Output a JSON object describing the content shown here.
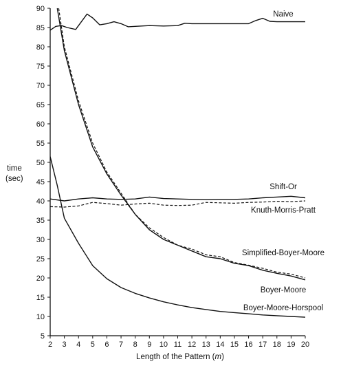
{
  "chart_data": {
    "type": "line",
    "title": "",
    "xlabel": "Length of the Pattern (m)",
    "xlabel_parts": {
      "before": "Length of the Pattern (",
      "italic": "m",
      "after": ")"
    },
    "ylabel_line1": "time",
    "ylabel_line2": "(sec)",
    "xlim": [
      2,
      20
    ],
    "ylim": [
      5,
      90
    ],
    "x_ticks": [
      "2",
      "3",
      "4",
      "5",
      "6",
      "7",
      "8",
      "9",
      "10",
      "11",
      "12",
      "13",
      "14",
      "15",
      "16",
      "17",
      "18",
      "19",
      "20"
    ],
    "y_ticks": [
      "5",
      "10",
      "15",
      "20",
      "25",
      "30",
      "35",
      "40",
      "45",
      "50",
      "55",
      "60",
      "65",
      "70",
      "75",
      "80",
      "85",
      "90"
    ],
    "grid": false,
    "legend": "none",
    "series": [
      {
        "name": "Naive",
        "style": "solid",
        "x": [
          2.0,
          2.4,
          2.8,
          3.2,
          3.8,
          4.3,
          4.6,
          5.0,
          5.5,
          6.0,
          6.5,
          7.0,
          7.5,
          8.0,
          9.0,
          10.0,
          11.0,
          11.5,
          12.0,
          13.0,
          14.0,
          15.0,
          16.0,
          16.5,
          17.0,
          17.5,
          18.0,
          19.0,
          20.0
        ],
        "y": [
          84.3,
          85.3,
          85.5,
          85.0,
          84.5,
          87.0,
          88.5,
          87.5,
          85.7,
          86.0,
          86.5,
          86.0,
          85.2,
          85.3,
          85.5,
          85.4,
          85.5,
          86.1,
          86.0,
          86.0,
          86.0,
          86.0,
          86.0,
          86.8,
          87.4,
          86.6,
          86.5,
          86.5,
          86.5
        ]
      },
      {
        "name": "Shift-Or",
        "style": "solid",
        "x": [
          2,
          3,
          4,
          5,
          6,
          7,
          8,
          9,
          10,
          11,
          12,
          13,
          14,
          15,
          16,
          17,
          18,
          19,
          20
        ],
        "y": [
          40.5,
          40.0,
          40.5,
          40.8,
          40.5,
          40.4,
          40.5,
          41.0,
          40.6,
          40.5,
          40.4,
          40.3,
          40.4,
          40.4,
          40.5,
          40.8,
          41.0,
          41.2,
          40.8
        ]
      },
      {
        "name": "Knuth-Morris-Pratt",
        "style": "dashed",
        "x": [
          2,
          3,
          4,
          5,
          6,
          7,
          8,
          9,
          10,
          11,
          12,
          13,
          14,
          15,
          16,
          17,
          18,
          19,
          20
        ],
        "y": [
          38.5,
          38.4,
          38.7,
          39.6,
          39.3,
          38.9,
          39.2,
          39.4,
          38.9,
          38.8,
          38.9,
          39.6,
          39.5,
          39.4,
          39.6,
          39.7,
          39.9,
          39.8,
          40.0
        ]
      },
      {
        "name": "Simplified-Boyer-Moore",
        "style": "dashed",
        "x": [
          2.6,
          3,
          4,
          5,
          6,
          7,
          8,
          9,
          10,
          11,
          12,
          13,
          14,
          15,
          16,
          17,
          18,
          19,
          20
        ],
        "y": [
          90.0,
          80.0,
          66.0,
          55.0,
          47.5,
          42.0,
          36.5,
          33.0,
          30.5,
          28.5,
          27.5,
          26.0,
          25.5,
          24.0,
          23.3,
          22.5,
          21.5,
          21.0,
          20.0
        ]
      },
      {
        "name": "Boyer-Moore",
        "style": "solid",
        "x": [
          2.5,
          3,
          4,
          5,
          6,
          7,
          8,
          9,
          10,
          11,
          12,
          13,
          14,
          15,
          16,
          17,
          18,
          19,
          20
        ],
        "y": [
          90.0,
          79.0,
          65.0,
          54.0,
          47.0,
          41.5,
          36.5,
          32.5,
          30.0,
          28.5,
          27.0,
          25.5,
          25.0,
          23.8,
          23.2,
          22.0,
          21.2,
          20.5,
          19.5
        ]
      },
      {
        "name": "Boyer-Moore-Horspool",
        "style": "solid",
        "x": [
          2,
          2.5,
          3,
          4,
          5,
          6,
          7,
          8,
          9,
          10,
          11,
          12,
          13,
          14,
          15,
          16,
          17,
          18,
          19,
          20
        ],
        "y": [
          51.5,
          44.0,
          35.5,
          29.0,
          23.2,
          19.8,
          17.5,
          16.0,
          14.8,
          13.8,
          13.0,
          12.3,
          11.8,
          11.3,
          11.0,
          10.7,
          10.4,
          10.2,
          10.0,
          9.8
        ]
      }
    ],
    "annotations": [
      {
        "text": "Naive",
        "series": "Naive"
      },
      {
        "text": "Shift-Or",
        "series": "Shift-Or"
      },
      {
        "text": "Knuth-Morris-Pratt",
        "series": "Knuth-Morris-Pratt"
      },
      {
        "text": "Simplified-Boyer-Moore",
        "series": "Simplified-Boyer-Moore"
      },
      {
        "text": "Boyer-Moore",
        "series": "Boyer-Moore"
      },
      {
        "text": "Boyer-Moore-Horspool",
        "series": "Boyer-Moore-Horspool"
      }
    ]
  }
}
